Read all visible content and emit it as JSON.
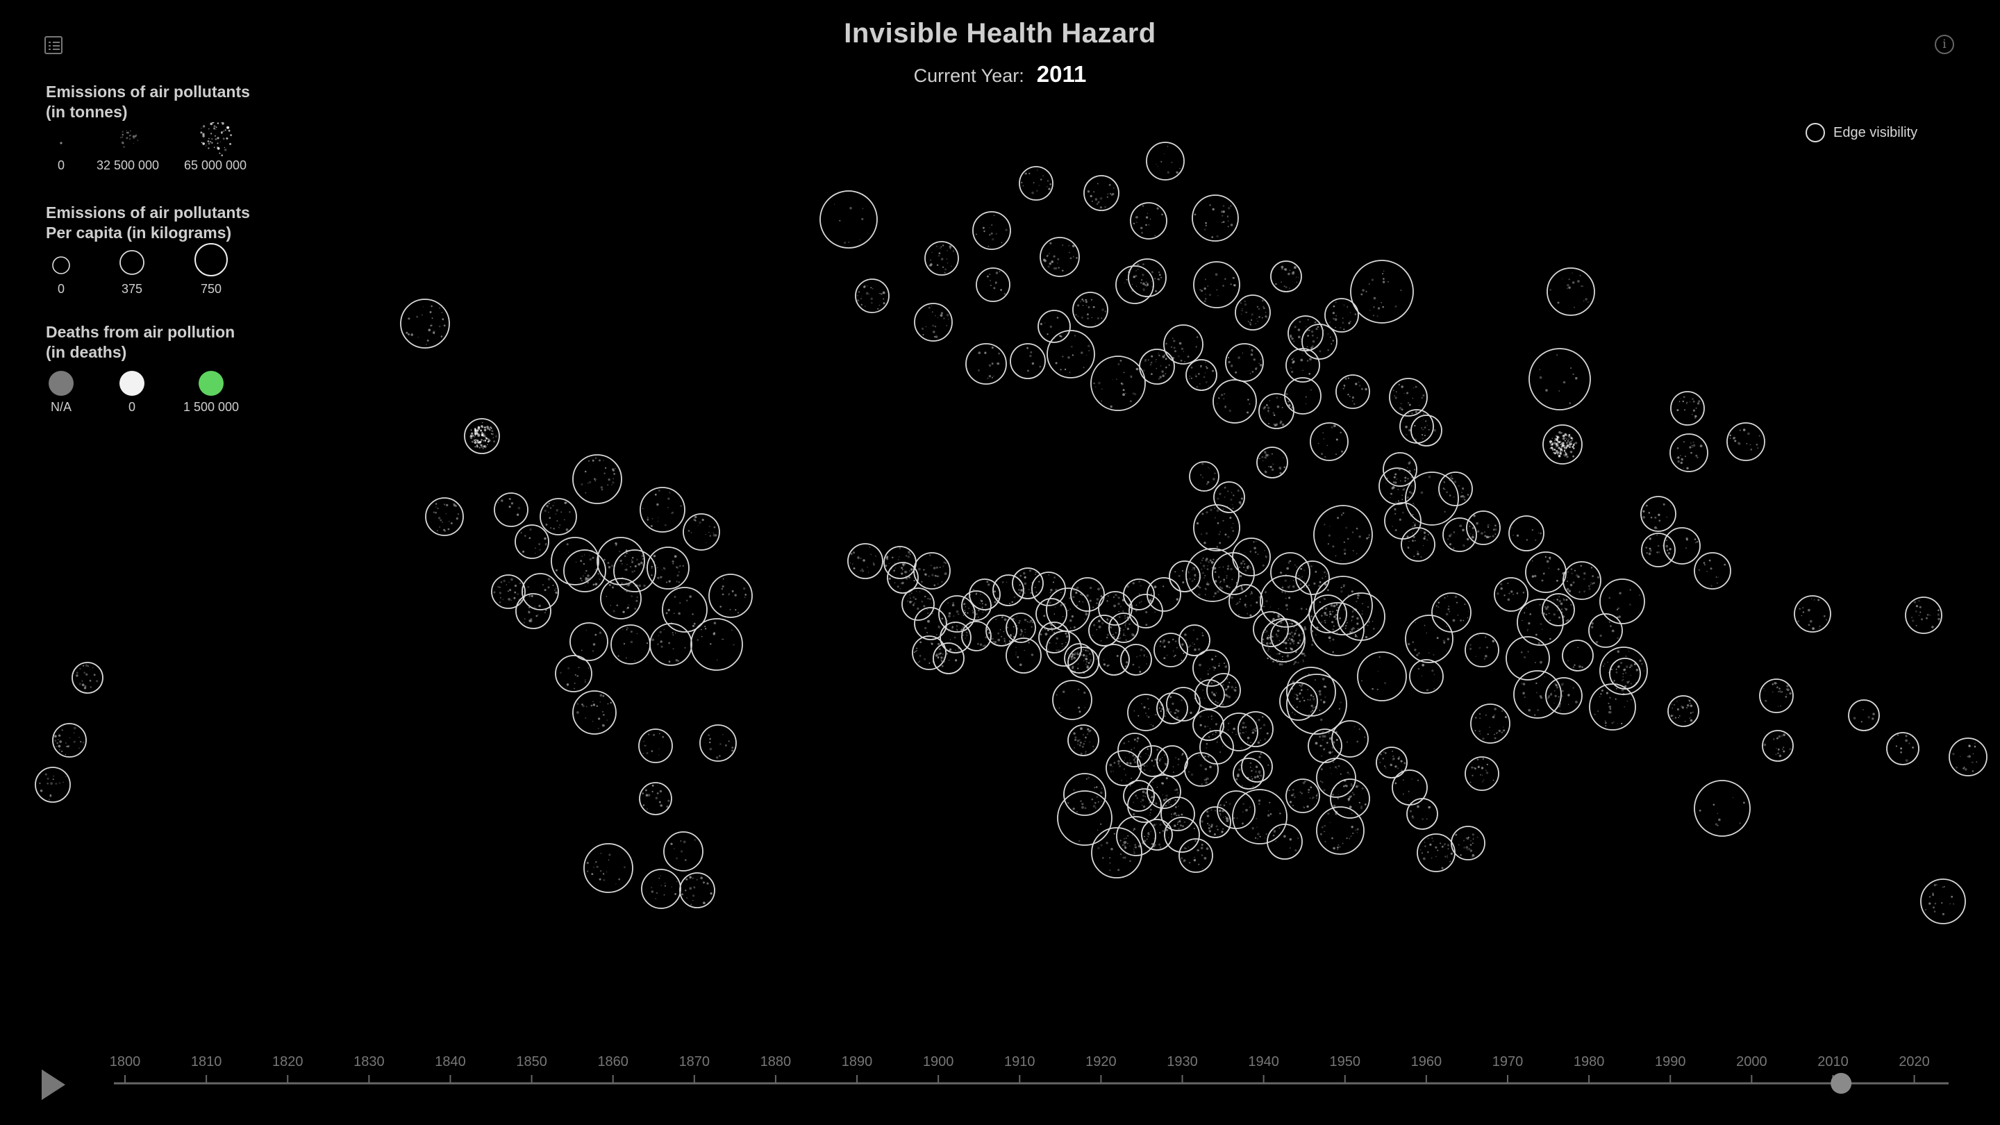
{
  "header": {
    "title": "Invisible Health Hazard",
    "year_label": "Current Year:",
    "year_value": "2011"
  },
  "icons": {
    "menu": "list-menu-icon",
    "info": "info-icon",
    "play": "play-icon"
  },
  "info_glyph": "i",
  "legend": {
    "emissions": {
      "title": "Emissions of air pollutants\n(in tonnes)",
      "items": [
        {
          "label": "0",
          "value": 0
        },
        {
          "label": "32 500 000",
          "value": 32500000
        },
        {
          "label": "65 000 000",
          "value": 65000000
        }
      ]
    },
    "per_capita": {
      "title": "Emissions of air pollutants\nPer capita (in kilograms)",
      "items": [
        {
          "label": "0",
          "value": 0
        },
        {
          "label": "375",
          "value": 375
        },
        {
          "label": "750",
          "value": 750
        }
      ]
    },
    "deaths": {
      "title": "Deaths from air pollution\n(in deaths)",
      "items": [
        {
          "label": "N/A",
          "color": "#7a7a7a"
        },
        {
          "label": "0",
          "color": "#f2f2f2"
        },
        {
          "label": "1 500 000",
          "color": "#5fd35f"
        }
      ]
    }
  },
  "edge_visibility": {
    "label": "Edge visibility"
  },
  "timeline": {
    "start": 1800,
    "end": 2022,
    "current": 2011,
    "tick_labels": [
      "1800",
      "1810",
      "1820",
      "1830",
      "1840",
      "1850",
      "1860",
      "1870",
      "1880",
      "1890",
      "1900",
      "1910",
      "1920",
      "1930",
      "1940",
      "1950",
      "1960",
      "1970",
      "1980",
      "1990",
      "2000",
      "2010",
      "2020"
    ]
  },
  "colors": {
    "background": "#000000",
    "bubble_stroke": "#d9d9d9",
    "timeline_track": "#666666",
    "timeline_handle": "#8a8a8a",
    "na_deaths": "#7a7a7a",
    "zero_deaths": "#f2f2f2",
    "max_deaths": "#5fd35f"
  }
}
